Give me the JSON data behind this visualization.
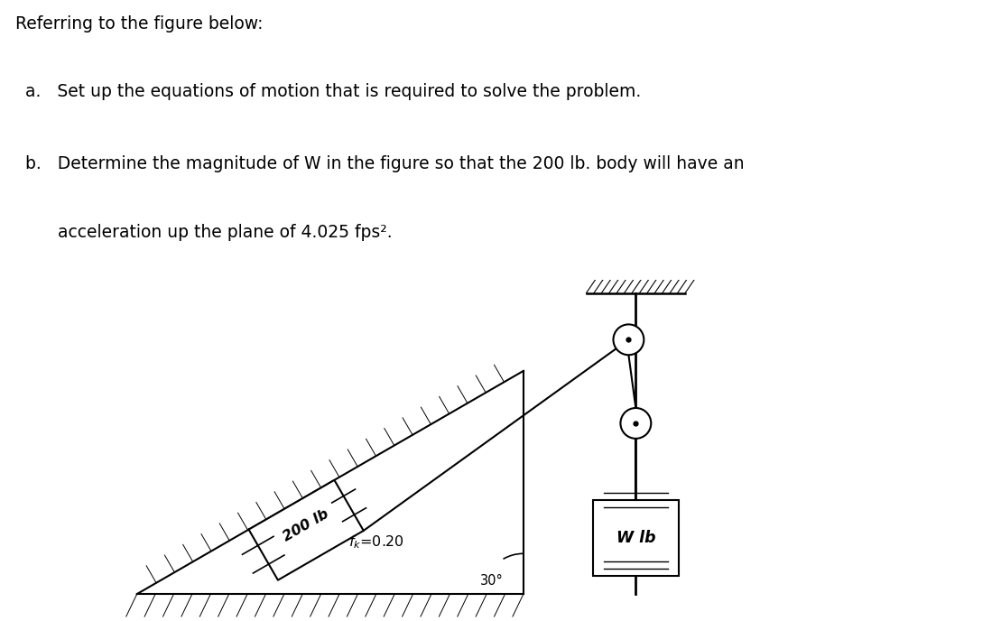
{
  "title_text": "Referring to the figure below:",
  "item_a": "a.   Set up the equations of motion that is required to solve the problem.",
  "item_b_line1": "b.   Determine the magnitude of W in the figure so that the 200 lb. body will have an",
  "item_b_line2": "      acceleration up the plane of 4.025 fps².",
  "bg_color": "#ffffff",
  "text_color": "#000000"
}
